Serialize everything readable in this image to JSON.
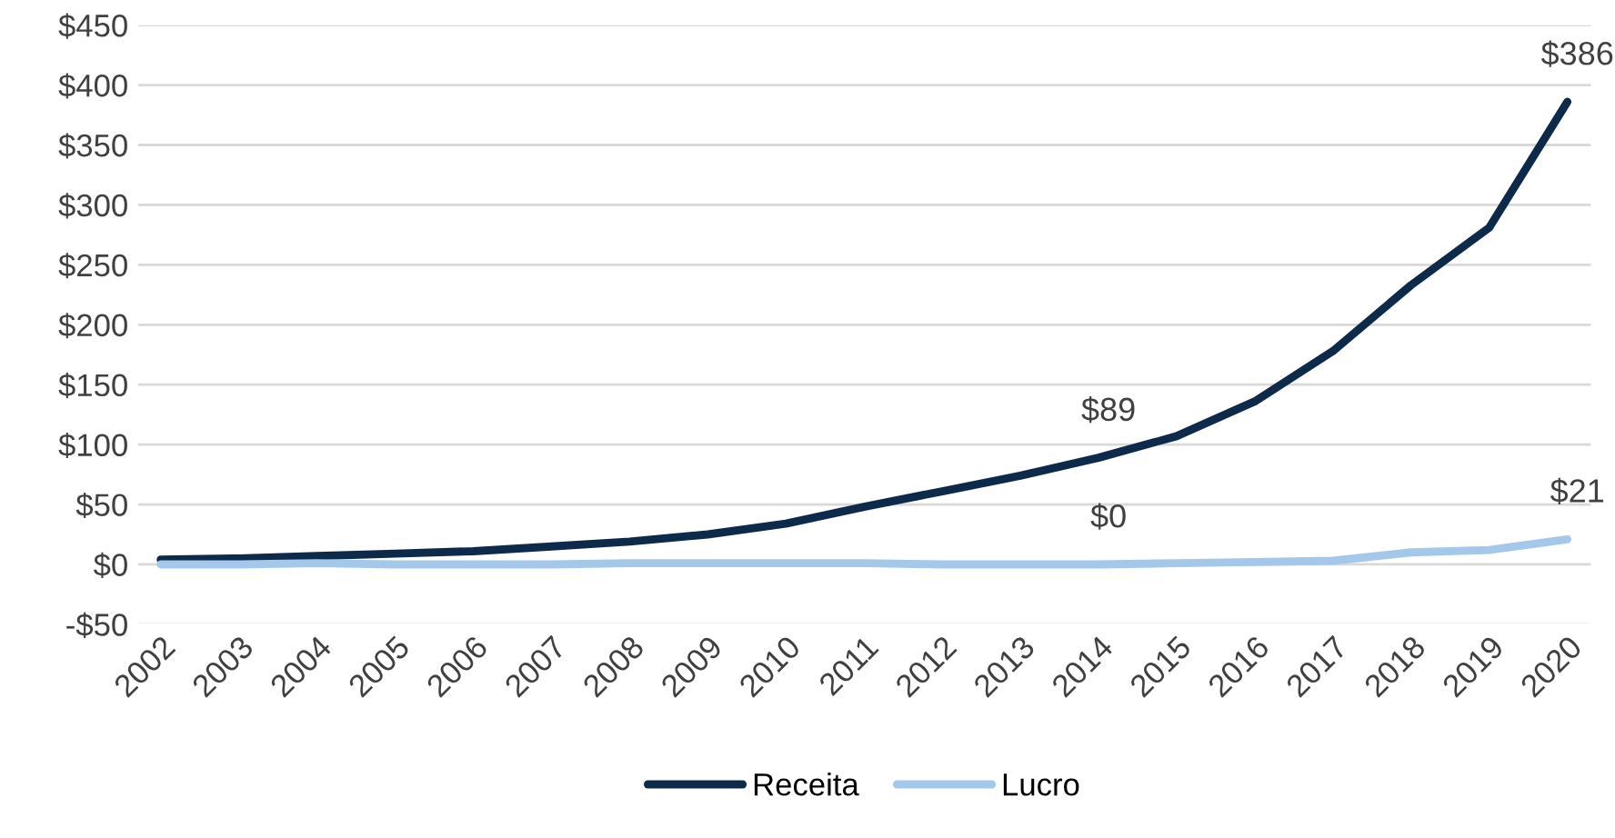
{
  "chart_data": {
    "type": "line",
    "categories": [
      "2002",
      "2003",
      "2004",
      "2005",
      "2006",
      "2007",
      "2008",
      "2009",
      "2010",
      "2011",
      "2012",
      "2013",
      "2014",
      "2015",
      "2016",
      "2017",
      "2018",
      "2019",
      "2020"
    ],
    "series": [
      {
        "name": "Receita",
        "color": "#0e2a4b",
        "values": [
          4,
          5,
          7,
          9,
          11,
          15,
          19,
          25,
          34,
          48,
          61,
          74,
          89,
          107,
          136,
          178,
          233,
          281,
          386
        ]
      },
      {
        "name": "Lucro",
        "color": "#a4c8ea",
        "values": [
          0,
          0,
          1,
          0,
          0,
          0,
          1,
          1,
          1,
          1,
          0,
          0,
          0,
          1,
          2,
          3,
          10,
          12,
          21
        ]
      }
    ],
    "ylim": [
      -50,
      450
    ],
    "yticks": [
      {
        "value": -50,
        "label": "-$50"
      },
      {
        "value": 0,
        "label": "$0"
      },
      {
        "value": 50,
        "label": "$50"
      },
      {
        "value": 100,
        "label": "$100"
      },
      {
        "value": 150,
        "label": "$150"
      },
      {
        "value": 200,
        "label": "$200"
      },
      {
        "value": 250,
        "label": "$250"
      },
      {
        "value": 300,
        "label": "$300"
      },
      {
        "value": 350,
        "label": "$350"
      },
      {
        "value": 400,
        "label": "$400"
      },
      {
        "value": 450,
        "label": "$450"
      }
    ],
    "grid": "y",
    "legend": "bottom",
    "marker": "none",
    "line_style": "solid",
    "annotations": [
      {
        "text": "$386",
        "x": "2020",
        "y": 386
      },
      {
        "text": "$89",
        "x": "2014",
        "y": 89
      },
      {
        "text": "$0",
        "x": "2014",
        "y": 0
      },
      {
        "text": "$21",
        "x": "2020",
        "y": 21
      }
    ]
  }
}
